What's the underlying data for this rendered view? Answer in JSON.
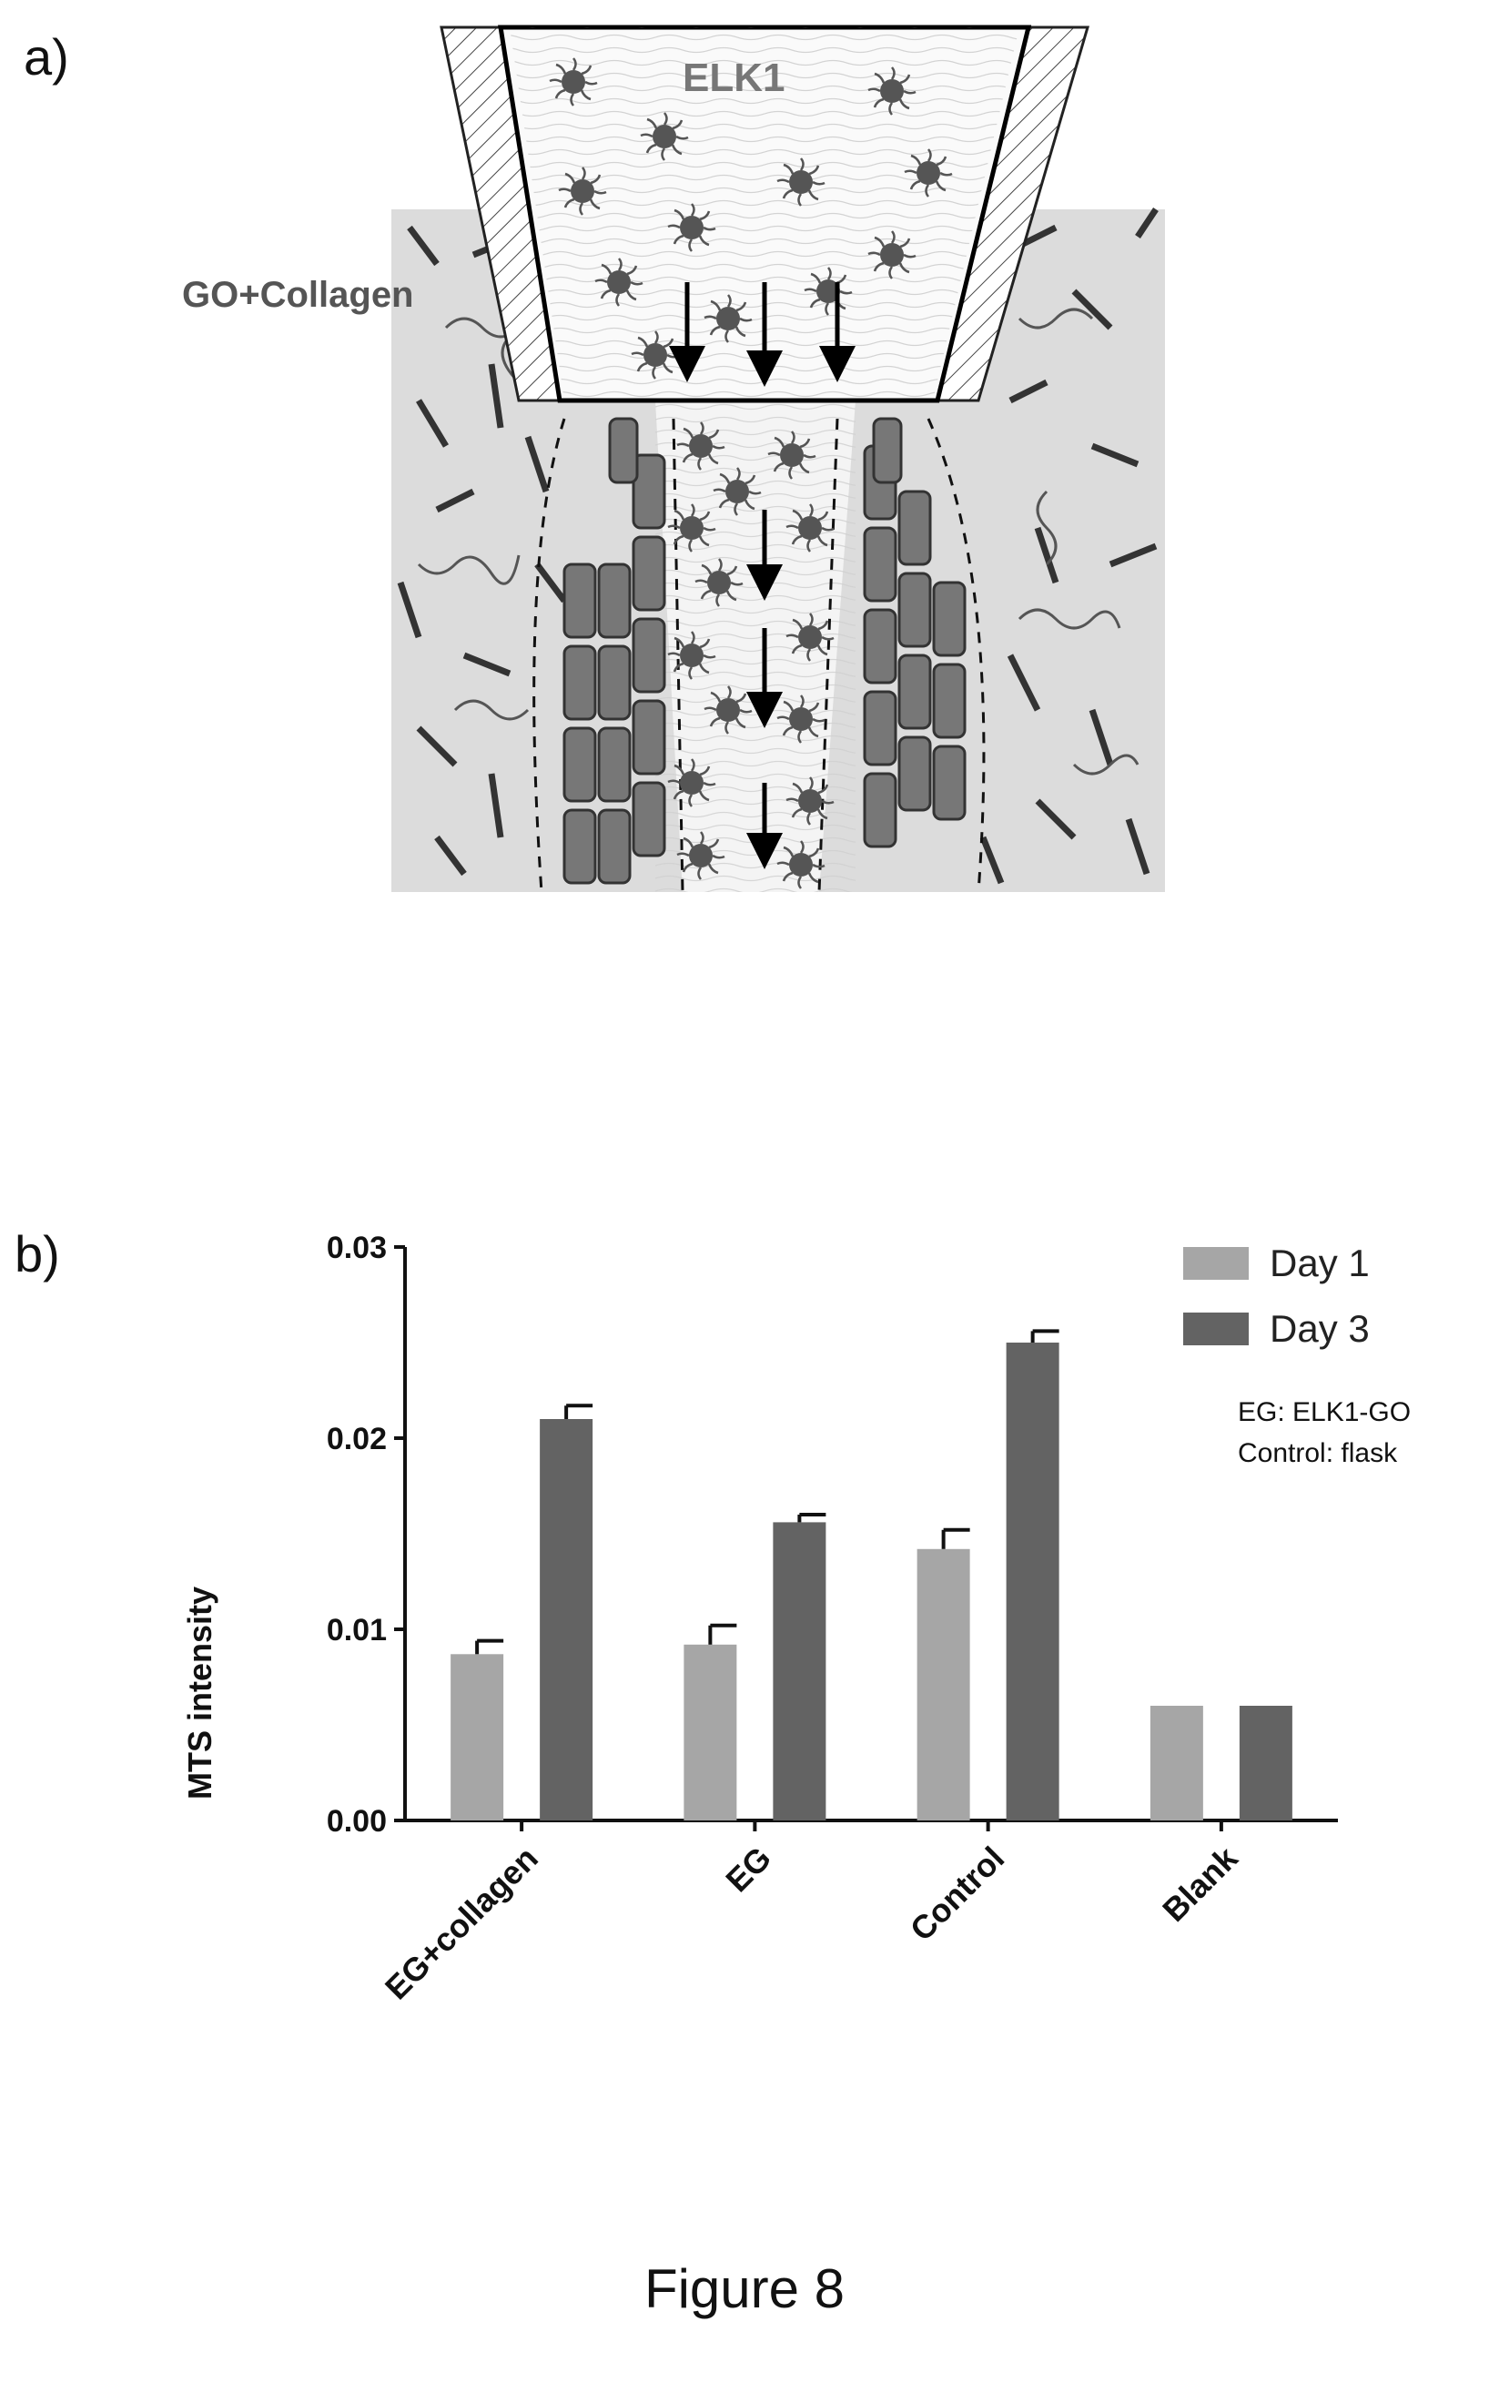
{
  "panel_a": {
    "label": "a)",
    "schematic_labels": {
      "top": "ELK1",
      "left": "GO+Collagen"
    }
  },
  "panel_b": {
    "label": "b)",
    "notes": [
      "EG: ELK1-GO",
      "Control: flask"
    ]
  },
  "chart_data": {
    "type": "bar",
    "categories": [
      "EG+collagen",
      "EG",
      "Control",
      "Blank"
    ],
    "series": [
      {
        "name": "Day 1",
        "values": [
          0.0087,
          0.0092,
          0.0142,
          0.006
        ],
        "errors": [
          0.0007,
          0.001,
          0.001,
          0
        ],
        "color": "#a6a6a6"
      },
      {
        "name": "Day 3",
        "values": [
          0.021,
          0.0156,
          0.025,
          0.006
        ],
        "errors": [
          0.0007,
          0.0004,
          0.0006,
          0
        ],
        "color": "#636363"
      }
    ],
    "ylabel": "MTS intensity",
    "xlabel": "",
    "ylim": [
      0,
      0.03
    ],
    "yticks": [
      "0.00",
      "0.01",
      "0.02",
      "0.03"
    ],
    "legend_position": "top-right",
    "grid": false
  },
  "caption": "Figure 8"
}
